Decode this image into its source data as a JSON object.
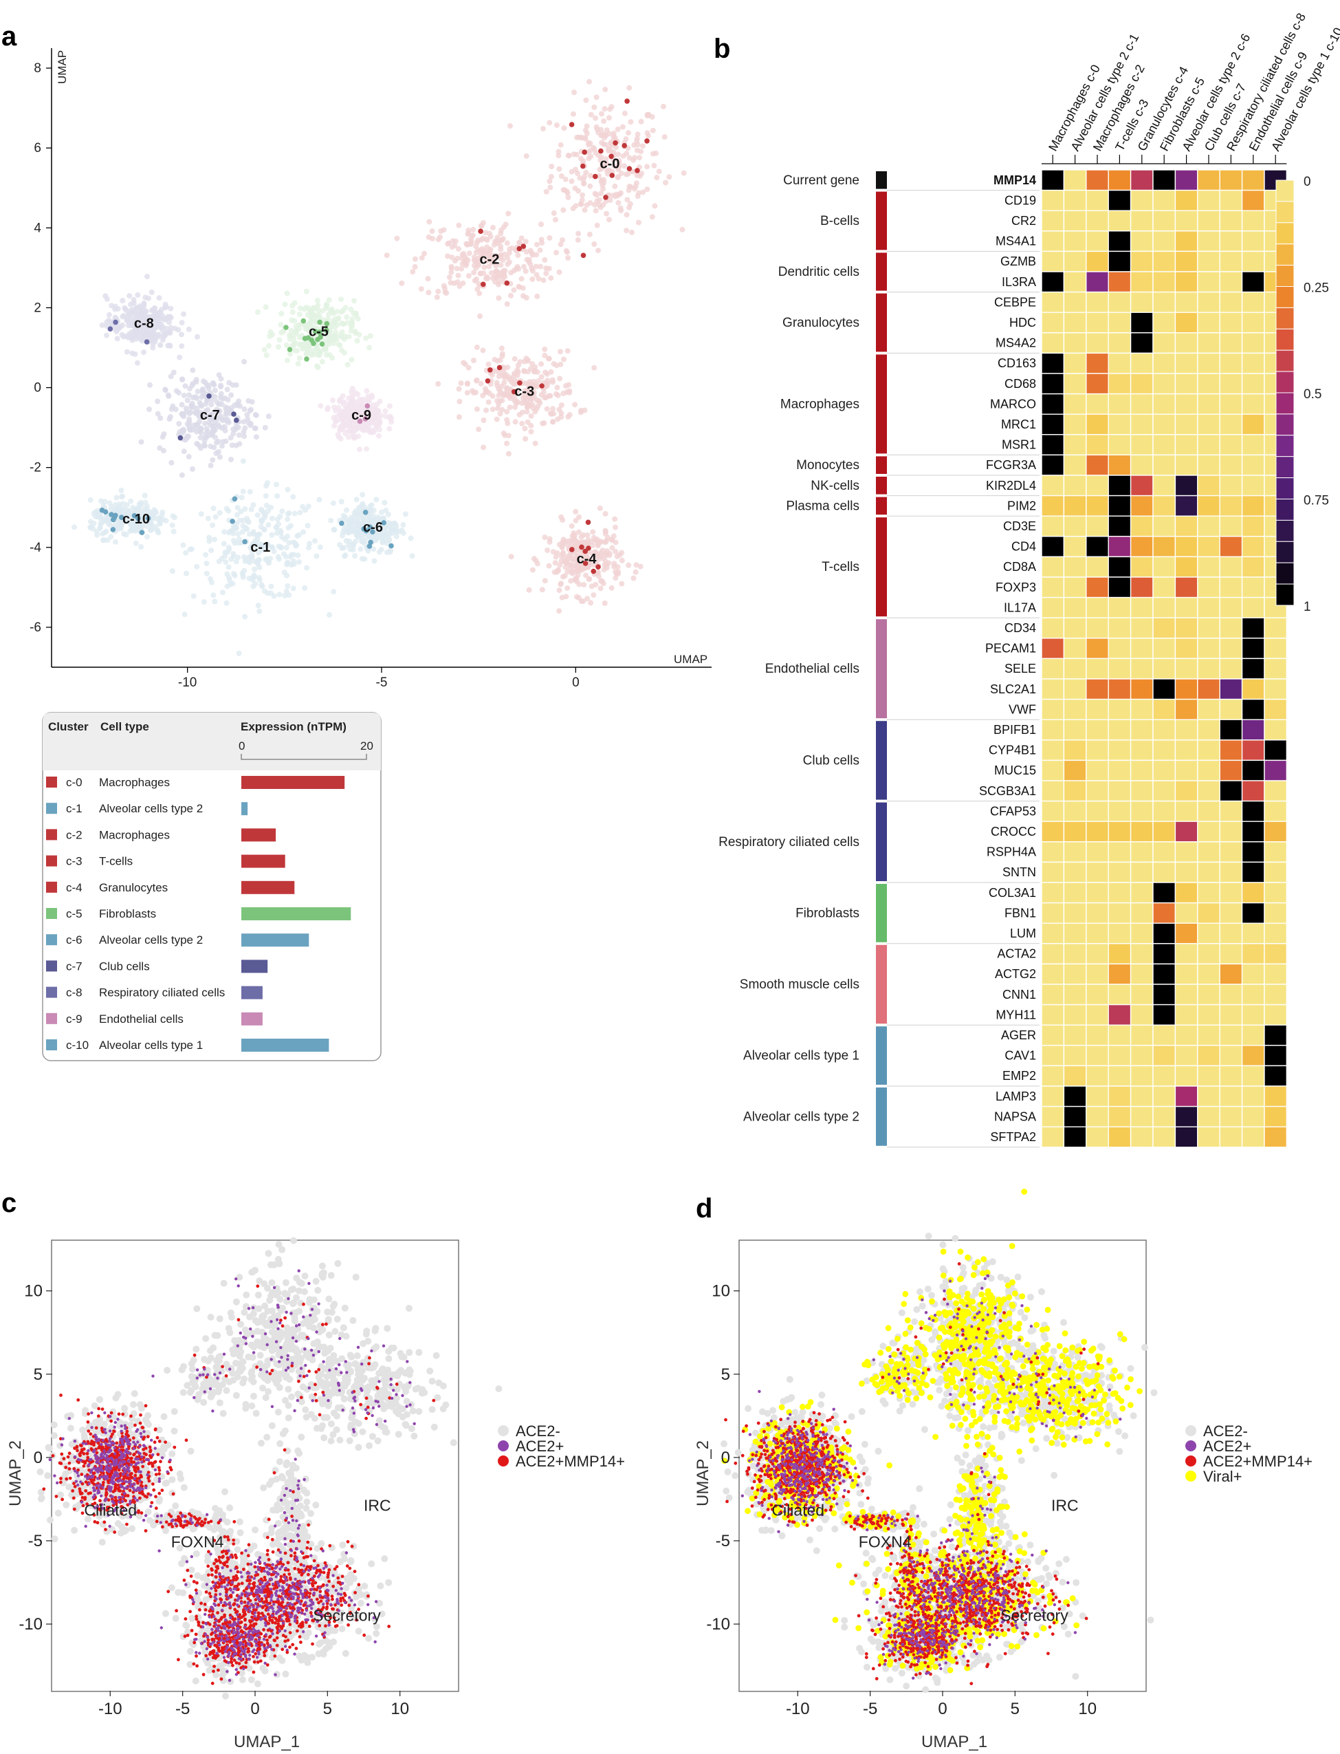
{
  "panels": {
    "a": "a",
    "b": "b",
    "c": "c",
    "d": "d"
  },
  "colors": {
    "macro": "#c0373a",
    "alv": "#6aa3c0",
    "fib": "#7cc47c",
    "club": "#5a5a95",
    "resp": "#6d6da8",
    "endo": "#c98ab5",
    "gray": "#e2e2e2",
    "purple": "#8e44ad",
    "red": "#e01818",
    "yellow": "#ffff00"
  },
  "chart_data": [
    {
      "id": "panel-a",
      "type": "scatter",
      "xlabel": "UMAP",
      "ylabel": "UMAP",
      "xlim": [
        -13.5,
        3.5
      ],
      "ylim": [
        -7,
        8.5
      ],
      "xticks": [
        -10,
        -5,
        0
      ],
      "yticks": [
        -6,
        -4,
        -2,
        0,
        2,
        4,
        6,
        8
      ],
      "clusters": [
        {
          "label": "c-0",
          "cell_type": "Macrophages",
          "center": [
            0.8,
            5.6
          ],
          "spread": [
            1.3,
            1.5
          ],
          "color": "#c0373a",
          "expression": 16.5
        },
        {
          "label": "c-1",
          "cell_type": "Alveolar cells type 2",
          "center": [
            -8.2,
            -4.0
          ],
          "spread": [
            1.5,
            1.2
          ],
          "color": "#6aa3c0",
          "expression": 1.0
        },
        {
          "label": "c-2",
          "cell_type": "Macrophages",
          "center": [
            -2.3,
            3.2
          ],
          "spread": [
            1.6,
            0.9
          ],
          "color": "#c0373a",
          "expression": 5.5
        },
        {
          "label": "c-3",
          "cell_type": "T-cells",
          "center": [
            -1.4,
            -0.1
          ],
          "spread": [
            1.3,
            0.9
          ],
          "color": "#c0373a",
          "expression": 7.0
        },
        {
          "label": "c-4",
          "cell_type": "Granulocytes",
          "center": [
            0.2,
            -4.3
          ],
          "spread": [
            0.9,
            0.8
          ],
          "color": "#c0373a",
          "expression": 8.5
        },
        {
          "label": "c-5",
          "cell_type": "Fibroblasts",
          "center": [
            -6.7,
            1.4
          ],
          "spread": [
            0.9,
            0.7
          ],
          "color": "#7cc47c",
          "expression": 17.5
        },
        {
          "label": "c-6",
          "cell_type": "Alveolar cells type 2",
          "center": [
            -5.3,
            -3.5
          ],
          "spread": [
            0.7,
            0.6
          ],
          "color": "#6aa3c0",
          "expression": 10.8
        },
        {
          "label": "c-7",
          "cell_type": "Club cells",
          "center": [
            -9.5,
            -0.7
          ],
          "spread": [
            1.1,
            0.9
          ],
          "color": "#5a5a95",
          "expression": 4.2
        },
        {
          "label": "c-8",
          "cell_type": "Respiratory ciliated cells",
          "center": [
            -11.2,
            1.6
          ],
          "spread": [
            0.8,
            0.6
          ],
          "color": "#6d6da8",
          "expression": 3.4
        },
        {
          "label": "c-9",
          "cell_type": "Endothelial cells",
          "center": [
            -5.6,
            -0.7
          ],
          "spread": [
            0.6,
            0.5
          ],
          "color": "#c98ab5",
          "expression": 3.4
        },
        {
          "label": "c-10",
          "cell_type": "Alveolar cells type 1",
          "center": [
            -11.5,
            -3.3
          ],
          "spread": [
            0.9,
            0.4
          ],
          "color": "#6aa3c0",
          "expression": 14.0
        }
      ],
      "legend": {
        "col_cluster": "Cluster",
        "col_type": "Cell type",
        "col_expr": "Expression (nTPM)",
        "scale_min": "0",
        "scale_max": "20",
        "scale_max_value": 20
      }
    },
    {
      "id": "panel-b",
      "type": "heatmap",
      "columns": [
        "Macrophages c-0",
        "Alveolar cells type 2 c-1",
        "Macrophages c-2",
        "T-cells c-3",
        "Granulocytes c-4",
        "Fibroblasts c-5",
        "Alveolar cells type 2 c-6",
        "Club cells c-7",
        "Respiratory ciliated cells c-8",
        "Endothelial cells c-9",
        "Alveolar cells type 1 c-10"
      ],
      "groups": [
        {
          "name": "Current gene",
          "color": "#111111",
          "genes": [
            "MMP14"
          ]
        },
        {
          "name": "B-cells",
          "color": "#b2141c",
          "genes": [
            "CD19",
            "CR2",
            "MS4A1"
          ]
        },
        {
          "name": "Dendritic cells",
          "color": "#b2141c",
          "genes": [
            "GZMB",
            "IL3RA"
          ]
        },
        {
          "name": "Granulocytes",
          "color": "#b2141c",
          "genes": [
            "CEBPE",
            "HDC",
            "MS4A2"
          ]
        },
        {
          "name": "Macrophages",
          "color": "#b2141c",
          "genes": [
            "CD163",
            "CD68",
            "MARCO",
            "MRC1",
            "MSR1"
          ]
        },
        {
          "name": "Monocytes",
          "color": "#b2141c",
          "genes": [
            "FCGR3A"
          ]
        },
        {
          "name": "NK-cells",
          "color": "#b2141c",
          "genes": [
            "KIR2DL4"
          ]
        },
        {
          "name": "Plasma cells",
          "color": "#b2141c",
          "genes": [
            "PIM2"
          ]
        },
        {
          "name": "T-cells",
          "color": "#b2141c",
          "genes": [
            "CD3E",
            "CD4",
            "CD8A",
            "FOXP3",
            "IL17A"
          ]
        },
        {
          "name": "Endothelial cells",
          "color": "#b8729f",
          "genes": [
            "CD34",
            "PECAM1",
            "SELE",
            "SLC2A1",
            "VWF"
          ]
        },
        {
          "name": "Club cells",
          "color": "#3c3c88",
          "genes": [
            "BPIFB1",
            "CYP4B1",
            "MUC15",
            "SCGB3A1"
          ]
        },
        {
          "name": "Respiratory ciliated cells",
          "color": "#3c3c88",
          "genes": [
            "CFAP53",
            "CROCC",
            "RSPH4A",
            "SNTN"
          ]
        },
        {
          "name": "Fibroblasts",
          "color": "#66bb6a",
          "genes": [
            "COL3A1",
            "FBN1",
            "LUM"
          ]
        },
        {
          "name": "Smooth muscle cells",
          "color": "#e0707a",
          "genes": [
            "ACTA2",
            "ACTG2",
            "CNN1",
            "MYH11"
          ]
        },
        {
          "name": "Alveolar cells type 1",
          "color": "#5b95b5",
          "genes": [
            "AGER",
            "CAV1",
            "EMP2"
          ]
        },
        {
          "name": "Alveolar cells type 2",
          "color": "#5b95b5",
          "genes": [
            "LAMP3",
            "NAPSA",
            "SFTPA2"
          ]
        }
      ],
      "values": [
        [
          1,
          0,
          0.3,
          0.25,
          0.45,
          1,
          0.6,
          0.15,
          0.15,
          0.15,
          0.9
        ],
        [
          0,
          0,
          0,
          1,
          0,
          0,
          0.1,
          0,
          0,
          0.2,
          0
        ],
        [
          0,
          0,
          0,
          0,
          0,
          0,
          0,
          0,
          0,
          0,
          0
        ],
        [
          0,
          0,
          0,
          1,
          0,
          0,
          0.1,
          0,
          0,
          0,
          0
        ],
        [
          0,
          0,
          0.1,
          1,
          0.05,
          0.05,
          0.1,
          0,
          0,
          0,
          0
        ],
        [
          1,
          0,
          0.6,
          0.3,
          0.05,
          0.05,
          0.1,
          0,
          0,
          1,
          0.1
        ],
        [
          0,
          0,
          0,
          0,
          0,
          0,
          0,
          0,
          0,
          0,
          0
        ],
        [
          0,
          0,
          0,
          0,
          1,
          0,
          0.1,
          0,
          0,
          0,
          0
        ],
        [
          0,
          0,
          0,
          0,
          1,
          0,
          0,
          0,
          0,
          0,
          0
        ],
        [
          1,
          0,
          0.3,
          0,
          0,
          0,
          0,
          0,
          0,
          0,
          0
        ],
        [
          1,
          0,
          0.3,
          0.05,
          0.05,
          0,
          0,
          0,
          0,
          0,
          0
        ],
        [
          1,
          0,
          0,
          0,
          0,
          0,
          0,
          0,
          0,
          0,
          0
        ],
        [
          1,
          0,
          0.1,
          0,
          0,
          0,
          0,
          0,
          0,
          0.1,
          0
        ],
        [
          1,
          0,
          0.05,
          0,
          0,
          0,
          0,
          0,
          0,
          0,
          0
        ],
        [
          1,
          0,
          0.3,
          0.2,
          0,
          0,
          0,
          0,
          0,
          0,
          0
        ],
        [
          0,
          0,
          0,
          1,
          0.4,
          0,
          0.9,
          0.05,
          0,
          0,
          0
        ],
        [
          0.1,
          0.1,
          0.1,
          1,
          0.2,
          0.05,
          0.85,
          0.1,
          0.05,
          0.1,
          0.05
        ],
        [
          0,
          0,
          0,
          1,
          0.05,
          0,
          0.05,
          0,
          0,
          0.05,
          0
        ],
        [
          1,
          0,
          1,
          0.55,
          0.2,
          0.15,
          0.1,
          0.05,
          0.3,
          0.05,
          0
        ],
        [
          0,
          0,
          0,
          1,
          0.05,
          0,
          0.1,
          0,
          0,
          0.05,
          0
        ],
        [
          0,
          0,
          0.3,
          1,
          0.35,
          0,
          0.35,
          0,
          0,
          0,
          0
        ],
        [
          0,
          0,
          0,
          0,
          0,
          0,
          0,
          0,
          0,
          0,
          0
        ],
        [
          0,
          0,
          0,
          0,
          0,
          0.05,
          0.05,
          0,
          0,
          1,
          0
        ],
        [
          0.35,
          0,
          0.2,
          0,
          0,
          0,
          0.05,
          0,
          0,
          1,
          0
        ],
        [
          0,
          0,
          0,
          0,
          0,
          0,
          0,
          0,
          0,
          1,
          0
        ],
        [
          0,
          0,
          0.3,
          0.3,
          0.25,
          1,
          0.25,
          0.3,
          0.7,
          0.1,
          0
        ],
        [
          0,
          0,
          0,
          0,
          0,
          0.05,
          0.2,
          0,
          0,
          1,
          0.05
        ],
        [
          0,
          0,
          0,
          0,
          0,
          0,
          0,
          0,
          1,
          0.65,
          0
        ],
        [
          0,
          0.05,
          0,
          0,
          0,
          0,
          0,
          0,
          0.3,
          0.4,
          1
        ],
        [
          0,
          0.15,
          0,
          0,
          0,
          0,
          0,
          0,
          0.3,
          1,
          0.6
        ],
        [
          0,
          0.05,
          0,
          0,
          0,
          0,
          0.05,
          0,
          1,
          0.4,
          0
        ],
        [
          0,
          0,
          0,
          0,
          0,
          0,
          0,
          0,
          0,
          1,
          0
        ],
        [
          0.1,
          0.1,
          0.1,
          0.1,
          0.1,
          0.1,
          0.45,
          0,
          0,
          1,
          0.15
        ],
        [
          0,
          0,
          0,
          0,
          0,
          0,
          0,
          0,
          0,
          1,
          0
        ],
        [
          0,
          0,
          0,
          0,
          0,
          0,
          0,
          0,
          0,
          1,
          0
        ],
        [
          0,
          0,
          0,
          0,
          0,
          1,
          0.1,
          0,
          0,
          0.1,
          0
        ],
        [
          0,
          0,
          0,
          0,
          0,
          0.3,
          0,
          0.05,
          0,
          1,
          0
        ],
        [
          0,
          0,
          0,
          0,
          0,
          1,
          0.2,
          0,
          0,
          0,
          0
        ],
        [
          0,
          0,
          0,
          0.1,
          0,
          1,
          0,
          0,
          0,
          0.05,
          0.05
        ],
        [
          0,
          0,
          0,
          0.2,
          0,
          1,
          0,
          0,
          0.2,
          0,
          0
        ],
        [
          0,
          0,
          0,
          0,
          0,
          1,
          0,
          0,
          0,
          0,
          0
        ],
        [
          0,
          0,
          0,
          0.45,
          0,
          1,
          0,
          0,
          0,
          0,
          0
        ],
        [
          0,
          0,
          0,
          0,
          0,
          0,
          0,
          0,
          0,
          0,
          1
        ],
        [
          0,
          0,
          0,
          0,
          0,
          0.05,
          0,
          0.05,
          0,
          0.15,
          1
        ],
        [
          0,
          0.05,
          0,
          0,
          0,
          0,
          0,
          0,
          0,
          0,
          1
        ],
        [
          0,
          1,
          0,
          0.05,
          0,
          0,
          0.5,
          0,
          0,
          0,
          0.1
        ],
        [
          0,
          1,
          0,
          0.05,
          0,
          0,
          0.9,
          0,
          0,
          0,
          0.1
        ],
        [
          0,
          1,
          0,
          0.1,
          0,
          0,
          0.9,
          0,
          0,
          0,
          0.15
        ]
      ],
      "colorbar": {
        "ticks": [
          0,
          0.25,
          0.5,
          0.75,
          1
        ],
        "tick_labels": [
          "0",
          "0.25",
          "0.5",
          "0.75",
          "1"
        ]
      }
    },
    {
      "id": "panel-c",
      "type": "scatter",
      "xlabel": "UMAP_1",
      "ylabel": "UMAP_2",
      "xlim": [
        -14,
        14
      ],
      "ylim": [
        -14,
        13
      ],
      "xticks": [
        -10,
        -5,
        0,
        5,
        10
      ],
      "xtick_labels": [
        "-10",
        "-5",
        "0",
        "5",
        "10"
      ],
      "yticks": [
        10,
        5,
        0,
        -5,
        -10
      ],
      "ytick_labels": [
        "10",
        "5",
        "0",
        "-5",
        "-10"
      ],
      "series": [
        {
          "name": "ACE2-",
          "color": "#e2e2e2"
        },
        {
          "name": "ACE2+",
          "color": "#8e44ad"
        },
        {
          "name": "ACE2+MMP14+",
          "color": "#e01818"
        }
      ],
      "regions": [
        {
          "label": "Ciliated",
          "at": [
            -11.8,
            -3.5
          ]
        },
        {
          "label": "FOXN4",
          "at": [
            -5.8,
            -5.4
          ]
        },
        {
          "label": "IRC",
          "at": [
            7.5,
            -3.2
          ]
        },
        {
          "label": "Secretory",
          "at": [
            4.0,
            -9.8
          ]
        }
      ]
    },
    {
      "id": "panel-d",
      "type": "scatter",
      "xlabel": "UMAP_1",
      "ylabel": "UMAP_2",
      "xlim": [
        -14,
        14
      ],
      "ylim": [
        -14,
        13
      ],
      "xticks": [
        -10,
        -5,
        0,
        5,
        10
      ],
      "xtick_labels": [
        "-10",
        "-5",
        "0",
        "5",
        "10"
      ],
      "yticks": [
        10,
        5,
        0,
        -5,
        -10
      ],
      "ytick_labels": [
        "10",
        "5",
        "0",
        "-5",
        "-10"
      ],
      "series": [
        {
          "name": "ACE2-",
          "color": "#e2e2e2"
        },
        {
          "name": "ACE2+",
          "color": "#8e44ad"
        },
        {
          "name": "ACE2+MMP14+",
          "color": "#e01818"
        },
        {
          "name": "Viral+",
          "color": "#ffff00"
        }
      ],
      "regions": [
        {
          "label": "Ciliated",
          "at": [
            -11.8,
            -3.5
          ]
        },
        {
          "label": "FOXN4",
          "at": [
            -5.8,
            -5.4
          ]
        },
        {
          "label": "IRC",
          "at": [
            7.5,
            -3.2
          ]
        },
        {
          "label": "Secretory",
          "at": [
            4.0,
            -9.8
          ]
        }
      ]
    }
  ]
}
